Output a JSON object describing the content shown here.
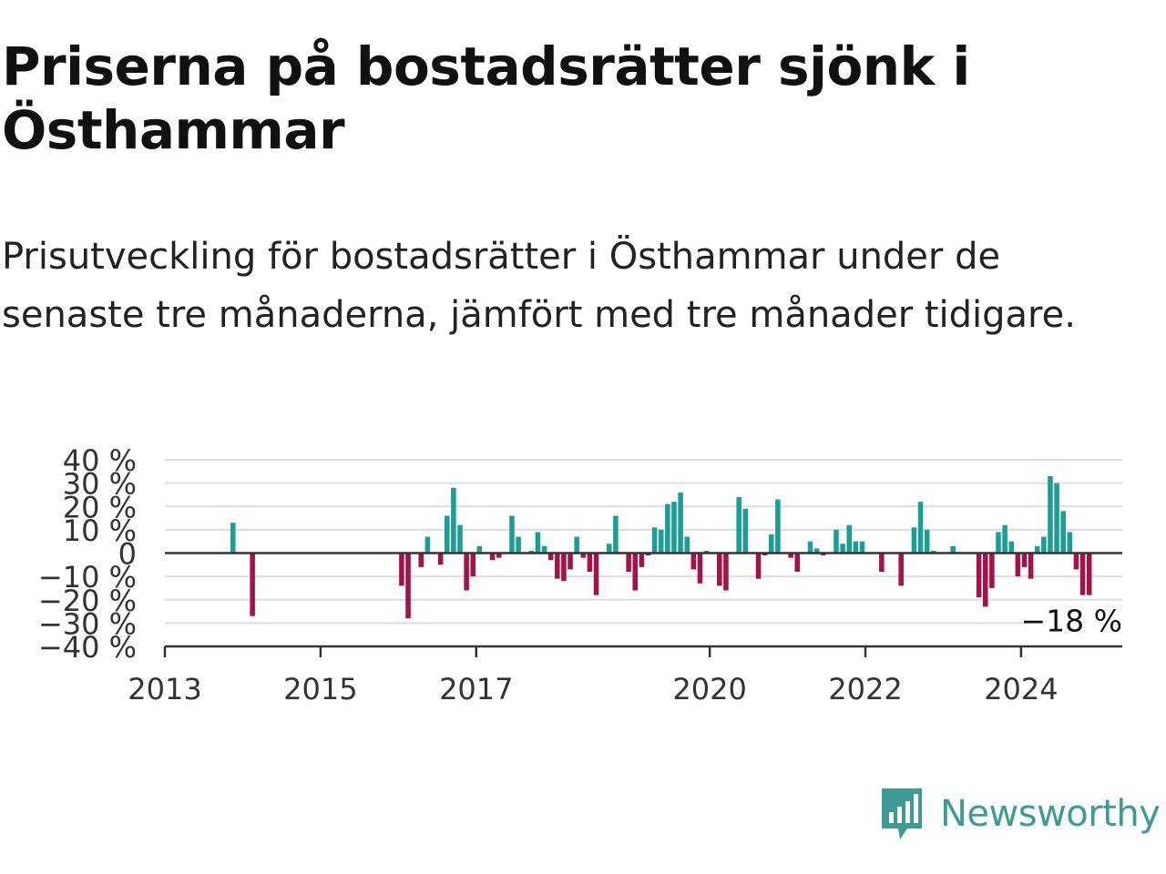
{
  "header": {
    "title": "Priserna på bostadsrätter sjönk i Östhammar",
    "subtitle": "Prisutveckling för bostadsrätter i Östhammar under de senaste tre månaderna, jämfört med tre månader tidigare."
  },
  "brand": {
    "name": "Newsworthy",
    "color": "#3d9b93",
    "icon": "newsworthy-logo-icon"
  },
  "chart_data": {
    "type": "bar",
    "x_axis": {
      "type": "time",
      "range": [
        2013.0,
        2025.3
      ],
      "tick_labels": [
        "2013",
        "2015",
        "2017",
        "2020",
        "2022",
        "2024"
      ]
    },
    "y_axis": {
      "range": [
        -40,
        40
      ],
      "tick_values": [
        40,
        30,
        20,
        10,
        0,
        -10,
        -20,
        -30,
        -40
      ],
      "tick_labels": [
        "40 %",
        "30 %",
        "20 %",
        "10 %",
        "0",
        "−10 %",
        "−20 %",
        "−30 %",
        "−40 %"
      ]
    },
    "grid": true,
    "colors": {
      "positive": "#1a9e96",
      "negative": "#a3124a"
    },
    "last_value_label": "−18 %",
    "series": [
      {
        "points": [
          [
            "2013-11",
            13
          ],
          [
            "2014-02",
            -27
          ],
          [
            "2016-01",
            -14
          ],
          [
            "2016-02",
            -28
          ],
          [
            "2016-04",
            -6
          ],
          [
            "2016-05",
            7
          ],
          [
            "2016-07",
            -5
          ],
          [
            "2016-08",
            16
          ],
          [
            "2016-09",
            28
          ],
          [
            "2016-10",
            12
          ],
          [
            "2016-11",
            -16
          ],
          [
            "2016-12",
            -10
          ],
          [
            "2017-01",
            3
          ],
          [
            "2017-03",
            -3
          ],
          [
            "2017-04",
            -2
          ],
          [
            "2017-06",
            16
          ],
          [
            "2017-07",
            7
          ],
          [
            "2017-09",
            1
          ],
          [
            "2017-10",
            9
          ],
          [
            "2017-11",
            3
          ],
          [
            "2017-12",
            -3
          ],
          [
            "2018-01",
            -11
          ],
          [
            "2018-02",
            -12
          ],
          [
            "2018-03",
            -7
          ],
          [
            "2018-04",
            7
          ],
          [
            "2018-05",
            -2
          ],
          [
            "2018-06",
            -8
          ],
          [
            "2018-07",
            -18
          ],
          [
            "2018-09",
            4
          ],
          [
            "2018-10",
            16
          ],
          [
            "2018-12",
            -8
          ],
          [
            "2019-01",
            -16
          ],
          [
            "2019-02",
            -6
          ],
          [
            "2019-03",
            -1
          ],
          [
            "2019-04",
            11
          ],
          [
            "2019-05",
            10
          ],
          [
            "2019-06",
            21
          ],
          [
            "2019-07",
            22
          ],
          [
            "2019-08",
            26
          ],
          [
            "2019-09",
            7
          ],
          [
            "2019-10",
            -7
          ],
          [
            "2019-11",
            -13
          ],
          [
            "2019-12",
            1
          ],
          [
            "2020-02",
            -14
          ],
          [
            "2020-03",
            -16
          ],
          [
            "2020-05",
            24
          ],
          [
            "2020-06",
            19
          ],
          [
            "2020-08",
            -11
          ],
          [
            "2020-09",
            -1
          ],
          [
            "2020-10",
            8
          ],
          [
            "2020-11",
            23
          ],
          [
            "2021-01",
            -2
          ],
          [
            "2021-02",
            -8
          ],
          [
            "2021-04",
            5
          ],
          [
            "2021-05",
            2
          ],
          [
            "2021-06",
            -1
          ],
          [
            "2021-08",
            10
          ],
          [
            "2021-09",
            4
          ],
          [
            "2021-10",
            12
          ],
          [
            "2021-11",
            5
          ],
          [
            "2021-12",
            5
          ],
          [
            "2022-03",
            -8
          ],
          [
            "2022-06",
            -14
          ],
          [
            "2022-08",
            11
          ],
          [
            "2022-09",
            22
          ],
          [
            "2022-10",
            10
          ],
          [
            "2022-11",
            1
          ],
          [
            "2023-02",
            3
          ],
          [
            "2023-06",
            -19
          ],
          [
            "2023-07",
            -23
          ],
          [
            "2023-08",
            -15
          ],
          [
            "2023-09",
            9
          ],
          [
            "2023-10",
            12
          ],
          [
            "2023-11",
            5
          ],
          [
            "2023-12",
            -10
          ],
          [
            "2024-01",
            -6
          ],
          [
            "2024-02",
            -11
          ],
          [
            "2024-03",
            3
          ],
          [
            "2024-04",
            7
          ],
          [
            "2024-05",
            33
          ],
          [
            "2024-06",
            30
          ],
          [
            "2024-07",
            18
          ],
          [
            "2024-08",
            9
          ],
          [
            "2024-09",
            -7
          ],
          [
            "2024-10",
            -18
          ],
          [
            "2024-11",
            -18
          ]
        ]
      }
    ]
  }
}
